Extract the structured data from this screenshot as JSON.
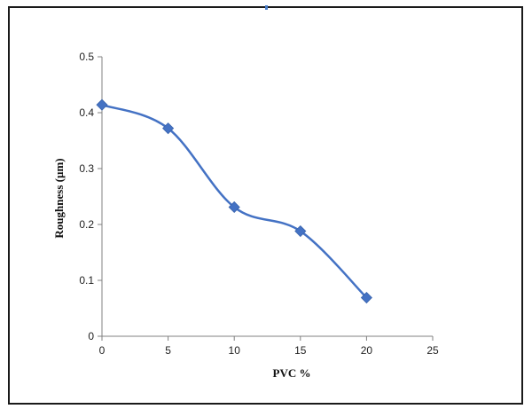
{
  "chart_data": {
    "type": "line",
    "title": "",
    "xlabel": "PVC %",
    "ylabel": "Roughness (µm)",
    "xlim": [
      0,
      25
    ],
    "ylim": [
      0,
      0.5
    ],
    "xticks": [
      0,
      5,
      10,
      15,
      20,
      25
    ],
    "yticks": [
      0,
      0.1,
      0.2,
      0.3,
      0.4,
      0.5
    ],
    "grid": false,
    "legend": "none",
    "smoothed": true,
    "marker": "diamond",
    "color": "#4472C4",
    "series": [
      {
        "x": [
          0,
          5,
          10,
          15,
          20
        ],
        "values": [
          0.414,
          0.372,
          0.231,
          0.188,
          0.069
        ]
      }
    ]
  }
}
